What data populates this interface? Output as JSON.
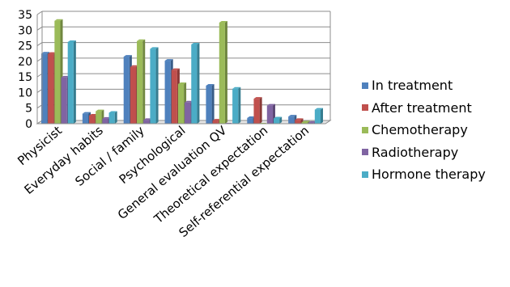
{
  "chart_data": {
    "type": "bar",
    "categories": [
      "Physicist",
      "Everyday habits",
      "Social / family",
      "Psychological",
      "General evaluation QV",
      "Theoretical expectation",
      "Self-referential expectation"
    ],
    "series": [
      {
        "name": "In treatment",
        "color": "#4F81BD",
        "values": [
          22.5,
          3.2,
          21.5,
          20.2,
          12.2,
          1.8,
          2.3
        ]
      },
      {
        "name": "After treatment",
        "color": "#C0504D",
        "values": [
          22.4,
          2.6,
          18.2,
          17.2,
          1.0,
          8.0,
          1.2
        ]
      },
      {
        "name": "Chemotherapy",
        "color": "#9BBB59",
        "values": [
          33.0,
          4.0,
          26.5,
          12.7,
          32.4,
          0.0,
          0.4
        ]
      },
      {
        "name": "Radiotherapy",
        "color": "#8064A2",
        "values": [
          14.8,
          1.6,
          1.2,
          6.8,
          0.0,
          5.8,
          0.3
        ]
      },
      {
        "name": "Hormone therapy",
        "color": "#4BACC6",
        "values": [
          26.2,
          3.5,
          24.0,
          25.4,
          11.2,
          1.7,
          4.5
        ]
      }
    ],
    "ylim": [
      0,
      35
    ],
    "yticks": [
      "0",
      "5",
      "10",
      "15",
      "20",
      "25",
      "30",
      "35"
    ],
    "grid": true,
    "legend_position": "right",
    "title": "",
    "xlabel": "",
    "ylabel": ""
  }
}
